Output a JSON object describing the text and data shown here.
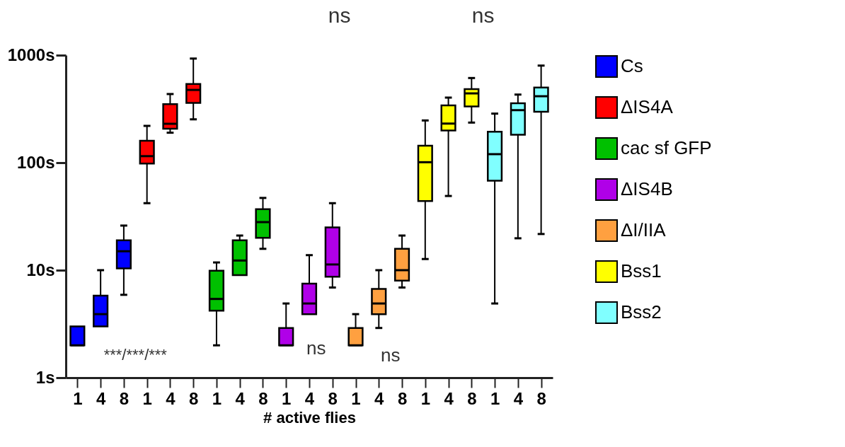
{
  "chart_data": {
    "type": "box",
    "xlabel": "# active flies",
    "categories": [
      "1",
      "4",
      "8",
      "1",
      "4",
      "8",
      "1",
      "4",
      "8",
      "1",
      "4",
      "8",
      "1",
      "4",
      "8",
      "1",
      "4",
      "8",
      "1",
      "4",
      "8"
    ],
    "log": "y",
    "ylim": [
      1,
      1000
    ],
    "yticks": [
      {
        "value": 1,
        "label": "1s"
      },
      {
        "value": 10,
        "label": "10s"
      },
      {
        "value": 100,
        "label": "100s"
      },
      {
        "value": 1000,
        "label": "1000s"
      }
    ],
    "grid": false,
    "legend": "right",
    "annotations": [
      "***/***/***",
      "ns",
      "ns",
      "ns",
      "ns"
    ],
    "series": [
      {
        "name": "Cs",
        "color": "#0000ff",
        "boxes": [
          {
            "low": 2,
            "q1": 2,
            "median": 2,
            "q3": 3,
            "high": 3
          },
          {
            "low": 3,
            "q1": 3,
            "median": 3.9,
            "q3": 5.8,
            "high": 10
          },
          {
            "low": 5.9,
            "q1": 10.4,
            "median": 15,
            "q3": 19,
            "high": 26
          },
          null,
          null,
          null,
          null,
          null,
          null,
          null,
          null,
          null,
          null,
          null,
          null,
          null,
          null,
          null,
          null,
          null,
          null
        ]
      },
      {
        "name": "ΔIS4A",
        "color": "#ff0000",
        "boxes": [
          null,
          null,
          null,
          {
            "low": 42,
            "q1": 98,
            "median": 115,
            "q3": 160,
            "high": 220
          },
          {
            "low": 190,
            "q1": 207,
            "median": 230,
            "q3": 350,
            "high": 435
          },
          {
            "low": 253,
            "q1": 360,
            "median": 475,
            "q3": 540,
            "high": 930
          },
          null,
          null,
          null,
          null,
          null,
          null,
          null,
          null,
          null,
          null,
          null,
          null,
          null,
          null,
          null
        ]
      },
      {
        "name": "cac sf GFP",
        "color": "#00c000",
        "boxes": [
          null,
          null,
          null,
          null,
          null,
          null,
          {
            "low": 2,
            "q1": 4.2,
            "median": 5.4,
            "q3": 9.9,
            "high": 11.8
          },
          {
            "low": 9,
            "q1": 9,
            "median": 12.3,
            "q3": 19,
            "high": 21
          },
          {
            "low": 15.8,
            "q1": 20,
            "median": 28,
            "q3": 37,
            "high": 47
          },
          null,
          null,
          null,
          null,
          null,
          null,
          null,
          null,
          null,
          null,
          null,
          null
        ]
      },
      {
        "name": "ΔIS4B",
        "color": "#b000e8",
        "boxes": [
          null,
          null,
          null,
          null,
          null,
          null,
          null,
          null,
          null,
          {
            "low": 2,
            "q1": 2,
            "median": 2,
            "q3": 2.9,
            "high": 4.9
          },
          {
            "low": 3.9,
            "q1": 3.9,
            "median": 4.9,
            "q3": 7.5,
            "high": 13.8
          },
          {
            "low": 6.9,
            "q1": 8.7,
            "median": 11.3,
            "q3": 25,
            "high": 42
          },
          null,
          null,
          null,
          null,
          null,
          null,
          null,
          null,
          null
        ]
      },
      {
        "name": "ΔI/IIA",
        "color": "#ffa040",
        "boxes": [
          null,
          null,
          null,
          null,
          null,
          null,
          null,
          null,
          null,
          null,
          null,
          null,
          {
            "low": 2,
            "q1": 2,
            "median": 2,
            "q3": 2.9,
            "high": 3.9
          },
          {
            "low": 2.9,
            "q1": 3.9,
            "median": 4.9,
            "q3": 6.7,
            "high": 10
          },
          {
            "low": 6.9,
            "q1": 8,
            "median": 10,
            "q3": 15.8,
            "high": 21
          },
          null,
          null,
          null,
          null,
          null,
          null
        ]
      },
      {
        "name": "Bss1",
        "color": "#ffff00",
        "boxes": [
          null,
          null,
          null,
          null,
          null,
          null,
          null,
          null,
          null,
          null,
          null,
          null,
          null,
          null,
          null,
          {
            "low": 12.7,
            "q1": 44,
            "median": 101,
            "q3": 144,
            "high": 247
          },
          {
            "low": 49,
            "q1": 199,
            "median": 231,
            "q3": 341,
            "high": 403
          },
          {
            "low": 236,
            "q1": 334,
            "median": 441,
            "q3": 483,
            "high": 613
          },
          null,
          null,
          null
        ]
      },
      {
        "name": "Bss2",
        "color": "#80ffff",
        "boxes": [
          null,
          null,
          null,
          null,
          null,
          null,
          null,
          null,
          null,
          null,
          null,
          null,
          null,
          null,
          null,
          null,
          null,
          null,
          {
            "low": 4.9,
            "q1": 68,
            "median": 120,
            "q3": 194,
            "high": 286
          },
          {
            "low": 19.8,
            "q1": 182,
            "median": 308,
            "q3": 357,
            "high": 430
          },
          {
            "low": 21.7,
            "q1": 298,
            "median": 415,
            "q3": 500,
            "high": 800
          }
        ]
      }
    ]
  }
}
